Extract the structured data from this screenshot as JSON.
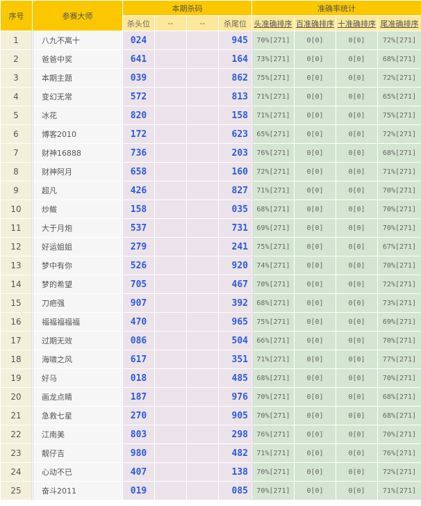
{
  "header": {
    "index": "序号",
    "master": "参赛大师",
    "kill_group": "本期杀码",
    "acc_group": "准确率统计",
    "kill_cols": [
      "杀头位",
      "--",
      "--",
      "杀尾位"
    ],
    "acc_cols": [
      "头准确排序",
      "百准确排序",
      "十准确排序",
      "尾准确排序"
    ]
  },
  "colors": {
    "header": "#fbc800",
    "subheader": "#fde79a",
    "kill_text": "#2a5bd7",
    "kill_bg": "#ebe2ea",
    "acc_bg": "#d4e5d1"
  },
  "rows": [
    {
      "no": "1",
      "name": "八九不离十",
      "head": "024",
      "tail": "945",
      "a": [
        "70%[271]",
        "0[0]",
        "0[0]",
        "72%[271]"
      ]
    },
    {
      "no": "2",
      "name": "爸爸中奖",
      "head": "641",
      "tail": "164",
      "a": [
        "73%[271]",
        "0[0]",
        "0[0]",
        "68%[271]"
      ]
    },
    {
      "no": "3",
      "name": "本期主题",
      "head": "039",
      "tail": "862",
      "a": [
        "75%[271]",
        "0[0]",
        "0[0]",
        "72%[271]"
      ]
    },
    {
      "no": "4",
      "name": "变幻无常",
      "head": "572",
      "tail": "813",
      "a": [
        "71%[271]",
        "0[0]",
        "0[0]",
        "65%[271]"
      ]
    },
    {
      "no": "5",
      "name": "冰花",
      "head": "820",
      "tail": "158",
      "a": [
        "71%[271]",
        "0[0]",
        "0[0]",
        "75%[271]"
      ]
    },
    {
      "no": "6",
      "name": "博客2010",
      "head": "172",
      "tail": "623",
      "a": [
        "65%[271]",
        "0[0]",
        "0[0]",
        "72%[271]"
      ]
    },
    {
      "no": "7",
      "name": "财神16888",
      "head": "736",
      "tail": "203",
      "a": [
        "76%[271]",
        "0[0]",
        "0[0]",
        "68%[271]"
      ]
    },
    {
      "no": "8",
      "name": "财神阿月",
      "head": "658",
      "tail": "160",
      "a": [
        "72%[271]",
        "0[0]",
        "0[0]",
        "71%[271]"
      ]
    },
    {
      "no": "9",
      "name": "超凡",
      "head": "426",
      "tail": "827",
      "a": [
        "71%[271]",
        "0[0]",
        "0[0]",
        "70%[271]"
      ]
    },
    {
      "no": "10",
      "name": "炒鲅",
      "head": "158",
      "tail": "035",
      "a": [
        "68%[271]",
        "0[0]",
        "0[0]",
        "70%[271]"
      ]
    },
    {
      "no": "11",
      "name": "大于月炮",
      "head": "537",
      "tail": "731",
      "a": [
        "69%[271]",
        "0[0]",
        "0[0]",
        "70%[271]"
      ]
    },
    {
      "no": "12",
      "name": "好运姐姐",
      "head": "279",
      "tail": "241",
      "a": [
        "75%[271]",
        "0[0]",
        "0[0]",
        "67%[271]"
      ]
    },
    {
      "no": "13",
      "name": "梦中有你",
      "head": "526",
      "tail": "920",
      "a": [
        "74%[271]",
        "0[0]",
        "0[0]",
        "70%[271]"
      ]
    },
    {
      "no": "14",
      "name": "梦的希望",
      "head": "705",
      "tail": "467",
      "a": [
        "70%[271]",
        "0[0]",
        "0[0]",
        "72%[271]"
      ]
    },
    {
      "no": "15",
      "name": "刀疤强",
      "head": "907",
      "tail": "392",
      "a": [
        "68%[271]",
        "0[0]",
        "0[0]",
        "73%[271]"
      ]
    },
    {
      "no": "16",
      "name": "福福福福福",
      "head": "470",
      "tail": "965",
      "a": [
        "75%[271]",
        "0[0]",
        "0[0]",
        "69%[271]"
      ]
    },
    {
      "no": "17",
      "name": "过期无效",
      "head": "086",
      "tail": "504",
      "a": [
        "66%[271]",
        "0[0]",
        "0[0]",
        "70%[271]"
      ]
    },
    {
      "no": "18",
      "name": "海啸之风",
      "head": "617",
      "tail": "351",
      "a": [
        "71%[271]",
        "0[0]",
        "0[0]",
        "77%[271]"
      ]
    },
    {
      "no": "19",
      "name": "好马",
      "head": "018",
      "tail": "485",
      "a": [
        "68%[271]",
        "0[0]",
        "0[0]",
        "70%[271]"
      ]
    },
    {
      "no": "20",
      "name": "画龙点睛",
      "head": "187",
      "tail": "976",
      "a": [
        "70%[271]",
        "0[0]",
        "0[0]",
        "68%[271]"
      ]
    },
    {
      "no": "21",
      "name": "急救七星",
      "head": "270",
      "tail": "905",
      "a": [
        "70%[271]",
        "0[0]",
        "0[0]",
        "68%[271]"
      ]
    },
    {
      "no": "22",
      "name": "江南美",
      "head": "803",
      "tail": "298",
      "a": [
        "76%[271]",
        "0[0]",
        "0[0]",
        "70%[271]"
      ]
    },
    {
      "no": "23",
      "name": "靓仔吉",
      "head": "980",
      "tail": "482",
      "a": [
        "71%[271]",
        "0[0]",
        "0[0]",
        "76%[271]"
      ]
    },
    {
      "no": "24",
      "name": "心动不已",
      "head": "407",
      "tail": "138",
      "a": [
        "70%[271]",
        "0[0]",
        "0[0]",
        "72%[271]"
      ]
    },
    {
      "no": "25",
      "name": "奋斗2011",
      "head": "019",
      "tail": "085",
      "a": [
        "70%[271]",
        "0[0]",
        "0[0]",
        "71%[271]"
      ]
    }
  ]
}
